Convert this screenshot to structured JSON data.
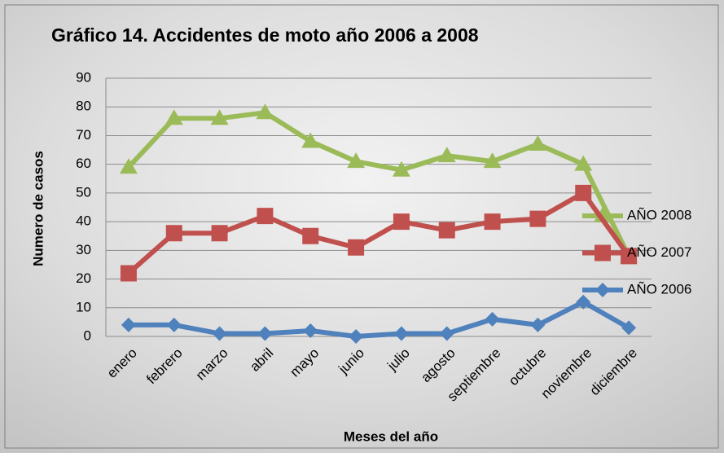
{
  "chart_data": {
    "type": "line",
    "title": "Gráfico 14. Accidentes de moto año 2006 a 2008",
    "x_label": "Meses del año",
    "y_label": "Numero de casos",
    "categories": [
      "enero",
      "febrero",
      "marzo",
      "abril",
      "mayo",
      "junio",
      "julio",
      "agosto",
      "septiembre",
      "octubre",
      "noviembre",
      "diciembre"
    ],
    "series": [
      {
        "name": "AÑO 2008",
        "color": "#9bbb59",
        "marker": "triangle",
        "values": [
          59,
          76,
          76,
          78,
          68,
          61,
          58,
          63,
          61,
          67,
          60,
          28
        ]
      },
      {
        "name": "AÑO 2007",
        "color": "#c0504d",
        "marker": "square",
        "values": [
          22,
          36,
          36,
          42,
          35,
          31,
          40,
          37,
          40,
          41,
          50,
          28
        ]
      },
      {
        "name": "AÑO 2006",
        "color": "#4f81bd",
        "marker": "diamond",
        "values": [
          4,
          4,
          1,
          1,
          2,
          0,
          1,
          1,
          6,
          4,
          12,
          3
        ]
      }
    ],
    "ylim": [
      0,
      90
    ],
    "yticks": [
      0,
      10,
      20,
      30,
      40,
      50,
      60,
      70,
      80,
      90
    ],
    "grid": true,
    "legend": "right"
  }
}
